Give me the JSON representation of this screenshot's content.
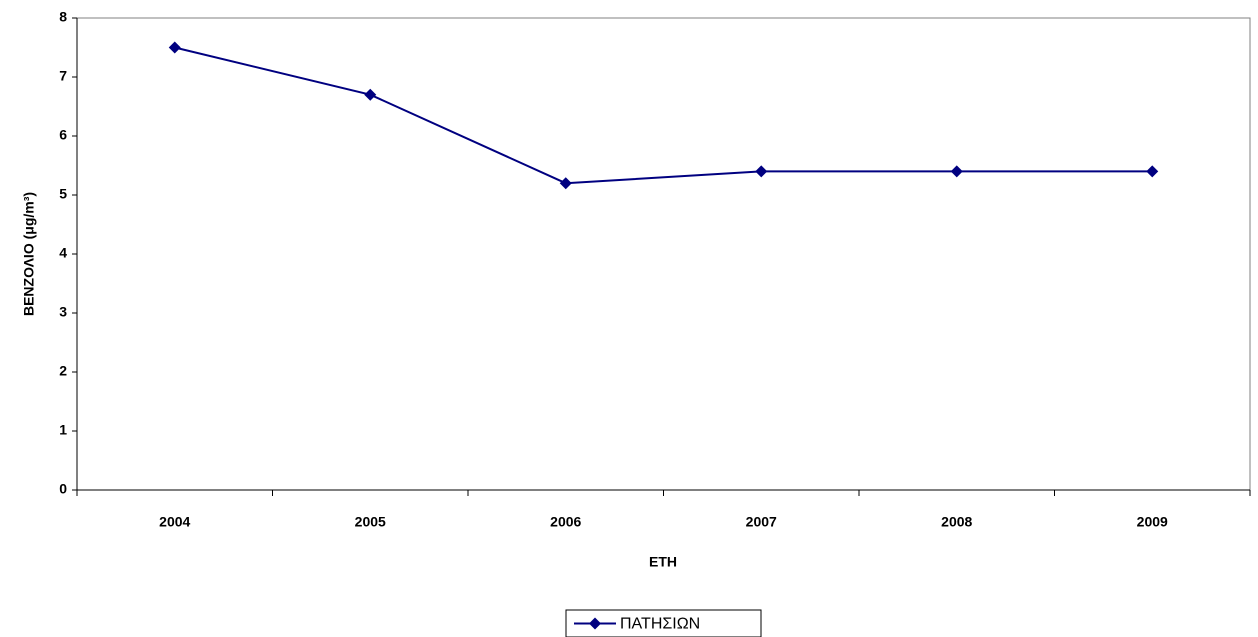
{
  "chart_data": {
    "type": "line",
    "x_label": "ΕΤΗ",
    "y_label": "ΒΕΝΖΟΛΙΟ (μg/m³)",
    "categories": [
      "2004",
      "2005",
      "2006",
      "2007",
      "2008",
      "2009"
    ],
    "series": [
      {
        "name": "ΠΑΤΗΣΙΩΝ",
        "color": "#000080",
        "values": [
          7.5,
          6.7,
          5.2,
          5.4,
          5.4,
          5.4
        ]
      }
    ],
    "ylim": [
      0,
      8
    ],
    "yticks": [
      0,
      1,
      2,
      3,
      4,
      5,
      6,
      7,
      8
    ],
    "grid": false,
    "legend": "bottom"
  }
}
